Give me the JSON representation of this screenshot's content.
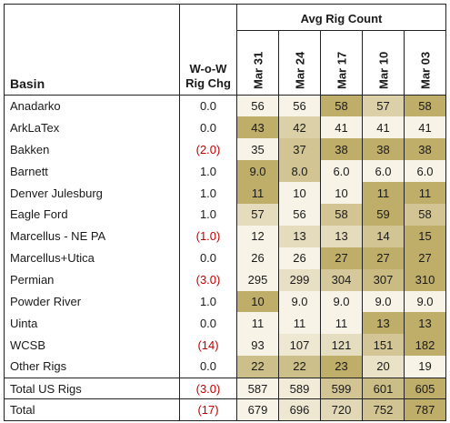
{
  "chart_data": {
    "type": "table",
    "headers": {
      "basin": "Basin",
      "change_line1": "W-o-W",
      "change_line2": "Rig Chg",
      "group": "Avg Rig Count"
    },
    "columns": [
      "Mar 31",
      "Mar 24",
      "Mar 17",
      "Mar 10",
      "Mar 03"
    ],
    "rows": [
      {
        "basin": "Anadarko",
        "change": "0.0",
        "values": [
          "56",
          "56",
          "58",
          "57",
          "58"
        ]
      },
      {
        "basin": "ArkLaTex",
        "change": "0.0",
        "values": [
          "43",
          "42",
          "41",
          "41",
          "41"
        ]
      },
      {
        "basin": "Bakken",
        "change": "(2.0)",
        "values": [
          "35",
          "37",
          "38",
          "38",
          "38"
        ]
      },
      {
        "basin": "Barnett",
        "change": "1.0",
        "values": [
          "9.0",
          "8.0",
          "6.0",
          "6.0",
          "6.0"
        ]
      },
      {
        "basin": "Denver Julesburg",
        "change": "1.0",
        "values": [
          "11",
          "10",
          "10",
          "11",
          "11"
        ]
      },
      {
        "basin": "Eagle Ford",
        "change": "1.0",
        "values": [
          "57",
          "56",
          "58",
          "59",
          "58"
        ]
      },
      {
        "basin": "Marcellus - NE PA",
        "change": "(1.0)",
        "values": [
          "12",
          "13",
          "13",
          "14",
          "15"
        ]
      },
      {
        "basin": "Marcellus+Utica",
        "change": "0.0",
        "values": [
          "26",
          "26",
          "27",
          "27",
          "27"
        ]
      },
      {
        "basin": "Permian",
        "change": "(3.0)",
        "values": [
          "295",
          "299",
          "304",
          "307",
          "310"
        ]
      },
      {
        "basin": "Powder River",
        "change": "1.0",
        "values": [
          "10",
          "9.0",
          "9.0",
          "9.0",
          "9.0"
        ]
      },
      {
        "basin": "Uinta",
        "change": "0.0",
        "values": [
          "11",
          "11",
          "11",
          "13",
          "13"
        ]
      },
      {
        "basin": "WCSB",
        "change": "(14)",
        "values": [
          "93",
          "107",
          "121",
          "151",
          "182"
        ]
      },
      {
        "basin": "Other Rigs",
        "change": "0.0",
        "values": [
          "22",
          "22",
          "23",
          "20",
          "19"
        ]
      },
      {
        "basin": "Total US Rigs",
        "change": "(3.0)",
        "values": [
          "587",
          "589",
          "599",
          "601",
          "605"
        ]
      },
      {
        "basin": "Total",
        "change": "(17)",
        "values": [
          "679",
          "696",
          "720",
          "752",
          "787"
        ]
      }
    ],
    "heat_colors": {
      "low": "#f7f3e6",
      "high": "#bfad6a"
    },
    "negative_color": "#c00000"
  }
}
